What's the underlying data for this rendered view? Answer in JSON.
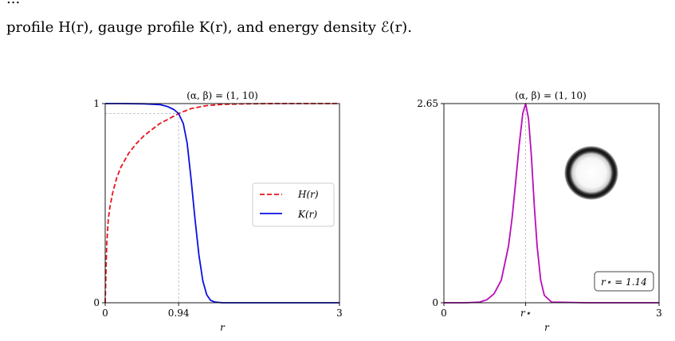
{
  "caption": {
    "line1": "...",
    "line2": "profile H(r), gauge profile K(r), and energy density ℰ(r)."
  },
  "chart_data": [
    {
      "type": "line",
      "title": "(α, β) = (1, 10)",
      "xlabel": "r",
      "ylabel": "",
      "xlim": [
        0,
        3
      ],
      "ylim": [
        0,
        1
      ],
      "x_ticks": [
        {
          "value": 0,
          "label": "0"
        },
        {
          "value": 0.94,
          "label": "0.94"
        },
        {
          "value": 3,
          "label": "3"
        }
      ],
      "y_ticks": [
        {
          "value": 0,
          "label": "0"
        },
        {
          "value": 1,
          "label": "1"
        }
      ],
      "reference_point": {
        "x": 0.94,
        "y": 0.95
      },
      "legend_position": "center-right",
      "series": [
        {
          "name": "H(r)",
          "color": "#e8141b",
          "style": "dashed",
          "x": [
            0,
            0.01,
            0.02,
            0.04,
            0.06,
            0.1,
            0.15,
            0.2,
            0.3,
            0.4,
            0.5,
            0.6,
            0.7,
            0.8,
            0.94,
            1.1,
            1.3,
            1.5,
            1.8,
            2.2,
            2.6,
            3.0
          ],
          "y": [
            0,
            0.16,
            0.3,
            0.42,
            0.48,
            0.56,
            0.63,
            0.68,
            0.75,
            0.8,
            0.84,
            0.87,
            0.9,
            0.92,
            0.95,
            0.975,
            0.99,
            0.996,
            0.999,
            1.0,
            1.0,
            1.0
          ]
        },
        {
          "name": "K(r)",
          "color": "#0a10e0",
          "style": "solid",
          "x": [
            0,
            0.2,
            0.5,
            0.7,
            0.8,
            0.88,
            0.94,
            1.0,
            1.05,
            1.1,
            1.15,
            1.2,
            1.25,
            1.3,
            1.35,
            1.4,
            1.5,
            1.8,
            2.2,
            2.6,
            3.0
          ],
          "y": [
            1.0,
            1.0,
            0.999,
            0.995,
            0.985,
            0.97,
            0.95,
            0.9,
            0.8,
            0.62,
            0.42,
            0.24,
            0.11,
            0.04,
            0.012,
            0.004,
            0.0,
            0.0,
            0.0,
            0.0,
            0.0
          ]
        }
      ]
    },
    {
      "type": "line",
      "title": "(α, β) = (1, 10)",
      "xlabel": "r",
      "ylabel": "",
      "xlim": [
        0,
        3
      ],
      "ylim": [
        0,
        2.65
      ],
      "x_ticks": [
        {
          "value": 0,
          "label": "0"
        },
        {
          "value": 1.14,
          "label": "r⋆"
        },
        {
          "value": 3,
          "label": "3"
        }
      ],
      "y_ticks": [
        {
          "value": 0,
          "label": "0"
        },
        {
          "value": 2.65,
          "label": "2.65"
        }
      ],
      "annotation": "r⋆ = 1.14",
      "peak": {
        "x": 1.14,
        "y": 2.65
      },
      "inset": "ring",
      "series": [
        {
          "name": "",
          "color": "#b80db8",
          "style": "solid",
          "x": [
            0,
            0.3,
            0.5,
            0.6,
            0.7,
            0.8,
            0.9,
            0.95,
            1.0,
            1.05,
            1.1,
            1.14,
            1.18,
            1.22,
            1.26,
            1.3,
            1.35,
            1.4,
            1.5,
            2.0,
            2.5,
            3.0
          ],
          "y": [
            0,
            0.0,
            0.01,
            0.04,
            0.12,
            0.3,
            0.75,
            1.12,
            1.6,
            2.1,
            2.52,
            2.65,
            2.45,
            1.95,
            1.3,
            0.75,
            0.3,
            0.1,
            0.01,
            0.0,
            0.0,
            0.0
          ]
        }
      ]
    }
  ]
}
